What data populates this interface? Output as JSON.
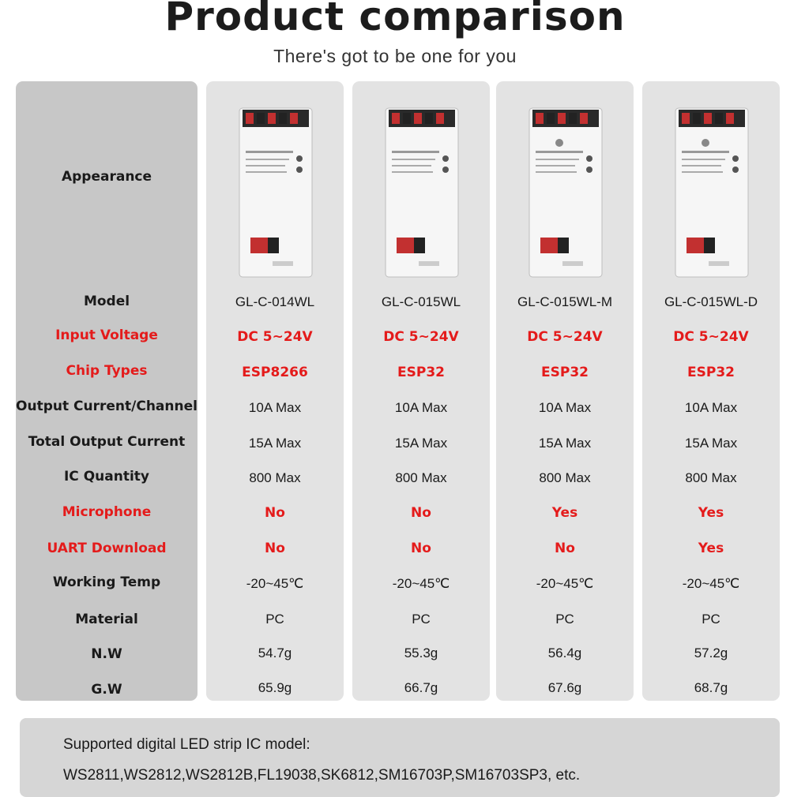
{
  "header": {
    "title": "Product comparison",
    "subtitle": "There's got to be one for you"
  },
  "colors": {
    "accent_red": "#e41b1b",
    "label_bg": "#c7c7c7",
    "product_bg": "#e3e3e3"
  },
  "rows": [
    {
      "label": "Appearance",
      "highlight": false
    },
    {
      "label": "Model",
      "highlight": false
    },
    {
      "label": "Input Voltage",
      "highlight": true
    },
    {
      "label": "Chip Types",
      "highlight": true
    },
    {
      "label": "Output Current/Channel",
      "highlight": false
    },
    {
      "label": "Total Output Current",
      "highlight": false
    },
    {
      "label": "IC Quantity",
      "highlight": false
    },
    {
      "label": "Microphone",
      "highlight": true
    },
    {
      "label": "UART Download",
      "highlight": true
    },
    {
      "label": "Working Temp",
      "highlight": false
    },
    {
      "label": "Material",
      "highlight": false
    },
    {
      "label": "N.W",
      "highlight": false
    },
    {
      "label": "G.W",
      "highlight": false
    }
  ],
  "products": [
    {
      "model": "GL-C-014WL",
      "input_voltage": "DC 5~24V",
      "chip": "ESP8266",
      "output_current": "10A Max",
      "total_current": "15A Max",
      "ic_quantity": "800 Max",
      "microphone": "No",
      "uart": "No",
      "temp": "-20~45℃",
      "material": "PC",
      "nw": "54.7g",
      "gw": "65.9g"
    },
    {
      "model": "GL-C-015WL",
      "input_voltage": "DC 5~24V",
      "chip": "ESP32",
      "output_current": "10A Max",
      "total_current": "15A Max",
      "ic_quantity": "800 Max",
      "microphone": "No",
      "uart": "No",
      "temp": "-20~45℃",
      "material": "PC",
      "nw": "55.3g",
      "gw": "66.7g"
    },
    {
      "model": "GL-C-015WL-M",
      "input_voltage": "DC 5~24V",
      "chip": "ESP32",
      "output_current": "10A Max",
      "total_current": "15A Max",
      "ic_quantity": "800 Max",
      "microphone": "Yes",
      "uart": "No",
      "temp": "-20~45℃",
      "material": "PC",
      "nw": "56.4g",
      "gw": "67.6g"
    },
    {
      "model": "GL-C-015WL-D",
      "input_voltage": "DC 5~24V",
      "chip": "ESP32",
      "output_current": "10A Max",
      "total_current": "15A Max",
      "ic_quantity": "800 Max",
      "microphone": "Yes",
      "uart": "Yes",
      "temp": "-20~45℃",
      "material": "PC",
      "nw": "57.2g",
      "gw": "68.7g"
    }
  ],
  "footer": {
    "line1": "Supported digital LED strip IC model:",
    "line2": "WS2811,WS2812,WS2812B,FL19038,SK6812,SM16703P,SM16703SP3, etc."
  }
}
